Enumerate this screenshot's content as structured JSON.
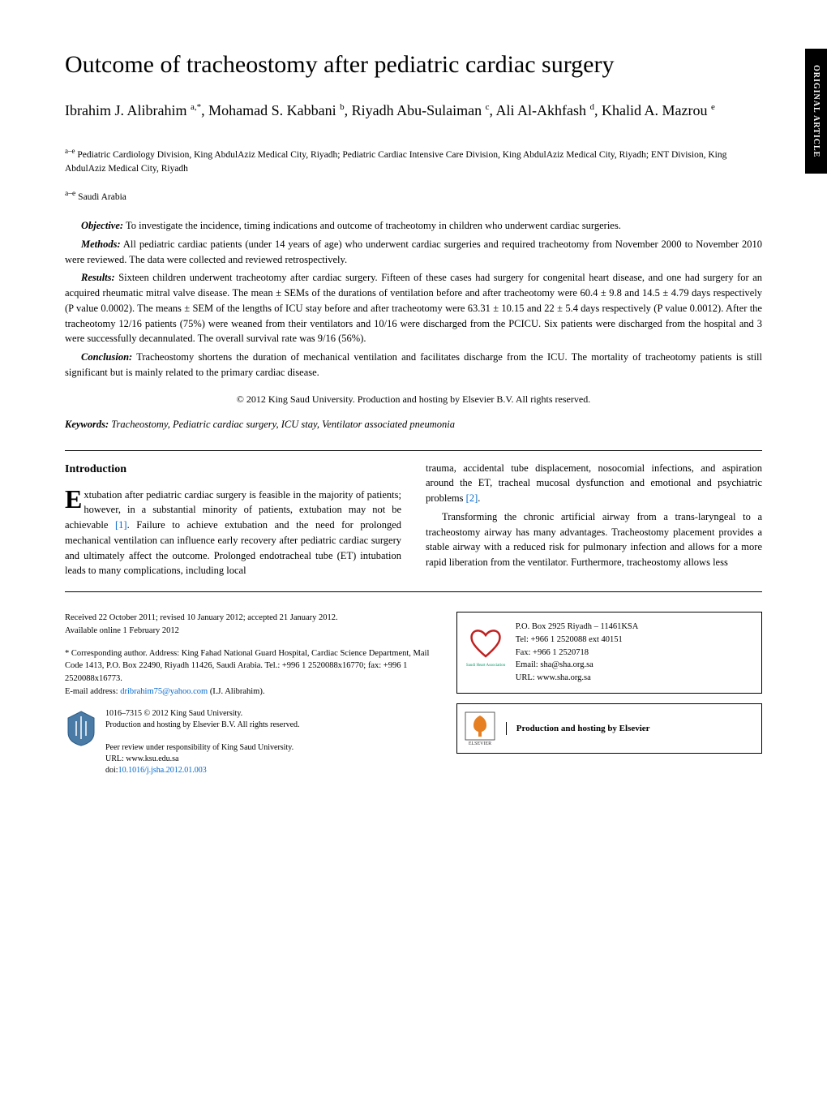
{
  "sideTab": "ORIGINAL ARTICLE",
  "title": "Outcome of tracheostomy after pediatric cardiac surgery",
  "authors": {
    "html_parts": [
      {
        "name": "Ibrahim J. Alibrahim",
        "sup": "a,*"
      },
      {
        "name": ", Mohamad S. Kabbani",
        "sup": "b"
      },
      {
        "name": ", Riyadh Abu-Sulaiman",
        "sup": "c"
      },
      {
        "name": ", Ali Al-Akhfash",
        "sup": "d"
      },
      {
        "name": ", Khalid A. Mazrou",
        "sup": "e"
      }
    ]
  },
  "affiliations": {
    "sup": "a–e",
    "text": "Pediatric Cardiology Division, King AbdulAziz Medical City, Riyadh; Pediatric Cardiac Intensive Care Division, King AbdulAziz Medical City, Riyadh; ENT Division, King AbdulAziz Medical City, Riyadh"
  },
  "country": {
    "sup": "a–e",
    "text": "Saudi Arabia"
  },
  "abstract": {
    "objective_label": "Objective:",
    "objective": "To investigate the incidence, timing indications and outcome of tracheotomy in children who underwent cardiac surgeries.",
    "methods_label": "Methods:",
    "methods": "All pediatric cardiac patients (under 14 years of age) who underwent cardiac surgeries and required tracheotomy from November 2000 to November 2010 were reviewed. The data were collected and reviewed retrospectively.",
    "results_label": "Results:",
    "results": "Sixteen children underwent tracheotomy after cardiac surgery. Fifteen of these cases had surgery for congenital heart disease, and one had surgery for an acquired rheumatic mitral valve disease. The mean ± SEMs of the durations of ventilation before and after tracheotomy were 60.4 ± 9.8 and 14.5 ± 4.79 days respectively (P value 0.0002). The means ± SEM of the lengths of ICU stay before and after tracheotomy were 63.31 ± 10.15 and 22 ± 5.4 days respectively (P value 0.0012). After the tracheotomy 12/16 patients (75%) were weaned from their ventilators and 10/16 were discharged from the PCICU. Six patients were discharged from the hospital and 3 were successfully decannulated. The overall survival rate was 9/16 (56%).",
    "conclusion_label": "Conclusion:",
    "conclusion": "Tracheostomy shortens the duration of mechanical ventilation and facilitates discharge from the ICU. The mortality of tracheotomy patients is still significant but is mainly related to the primary cardiac disease."
  },
  "copyright": "© 2012 King Saud University. Production and hosting by Elsevier B.V. All rights reserved.",
  "keywords": {
    "label": "Keywords:",
    "text": "Tracheostomy, Pediatric cardiac surgery, ICU stay, Ventilator associated pneumonia"
  },
  "intro": {
    "heading": "Introduction",
    "p1a": "Extubation after pediatric cardiac surgery is feasible in the majority of patients; however, in a substantial minority of patients, extubation may not be achievable ",
    "ref1": "[1]",
    "p1b": ". Failure to achieve extubation and the need for prolonged mechanical ventilation can influence early recovery after pediatric cardiac surgery and ultimately affect the outcome. Prolonged endotracheal tube (ET) intubation leads to many complications, including local",
    "p2a": "trauma, accidental tube displacement, nosocomial infections, and aspiration around the ET, tracheal mucosal dysfunction and emotional and psychiatric problems ",
    "ref2": "[2]",
    "p2b": ".",
    "p3": "Transforming the chronic artificial airway from a trans-laryngeal to a tracheostomy airway has many advantages. Tracheostomy placement provides a stable airway with a reduced risk for pulmonary infection and allows for a more rapid liberation from the ventilator. Furthermore, tracheostomy allows less"
  },
  "footer": {
    "received": "Received 22 October 2011; revised 10 January 2012; accepted 21 January 2012.",
    "available": "Available online 1 February 2012",
    "corresponding_label": "*",
    "corresponding": "Corresponding author. Address: King Fahad National Guard Hospital, Cardiac Science Department, Mail Code 1413, P.O. Box 22490, Riyadh 11426, Saudi Arabia. Tel.: +996 1 2520088x16770; fax: +996 1 2520088x16773.",
    "email_label": "E-mail address:",
    "email": "dribrahim75@yahoo.com",
    "email_suffix": "(I.J. Alibrahim).",
    "issn": "1016–7315 © 2012 King Saud University.",
    "prod": "Production and hosting by Elsevier B.V. All rights reserved.",
    "peer": "Peer review under responsibility of King Saud University.",
    "url_label": "URL:",
    "url": "www.ksu.edu.sa",
    "doi_label": "doi:",
    "doi": "10.1016/j.jsha.2012.01.003",
    "sha": {
      "line1": "P.O. Box 2925 Riyadh – 11461KSA",
      "line2": "Tel: +966 1 2520088 ext 40151",
      "line3": "Fax: +966 1 2520718",
      "line4": "Email: sha@sha.org.sa",
      "line5": "URL: www.sha.org.sa"
    },
    "elsevier": "Production and hosting by Elsevier"
  },
  "colors": {
    "link": "#0066cc",
    "heart": "#c02020",
    "elsevier_orange": "#e67e22",
    "ksu_blue": "#4a7ba6"
  }
}
